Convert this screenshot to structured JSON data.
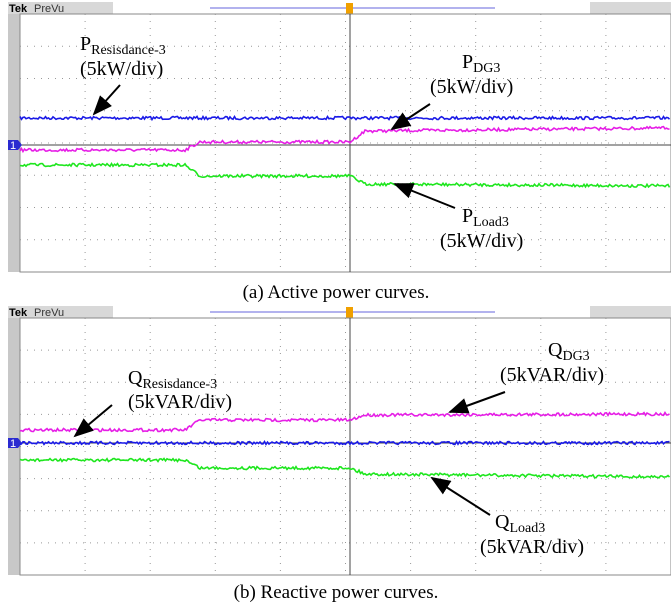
{
  "panels": [
    {
      "brand": "Tek",
      "mode": "PreVu",
      "channel": "1",
      "labels": [
        {
          "symbol": "P",
          "subscript": "Resisdance-3",
          "scale": "(5kW/div)"
        },
        {
          "symbol": "P",
          "subscript": "DG3",
          "scale": "(5kW/div)"
        },
        {
          "symbol": "P",
          "subscript": "Load3",
          "scale": "(5kW/div)"
        }
      ],
      "caption": "(a) Active power curves."
    },
    {
      "brand": "Tek",
      "mode": "PreVu",
      "channel": "1",
      "labels": [
        {
          "symbol": "Q",
          "subscript": "Resisdance-3",
          "scale": "(5kVAR/div)"
        },
        {
          "symbol": "Q",
          "subscript": "DG3",
          "scale": "(5kVAR/div)"
        },
        {
          "symbol": "Q",
          "subscript": "Load3",
          "scale": "(5kVAR/div)"
        }
      ],
      "caption": "(b) Reactive power curves."
    }
  ]
}
